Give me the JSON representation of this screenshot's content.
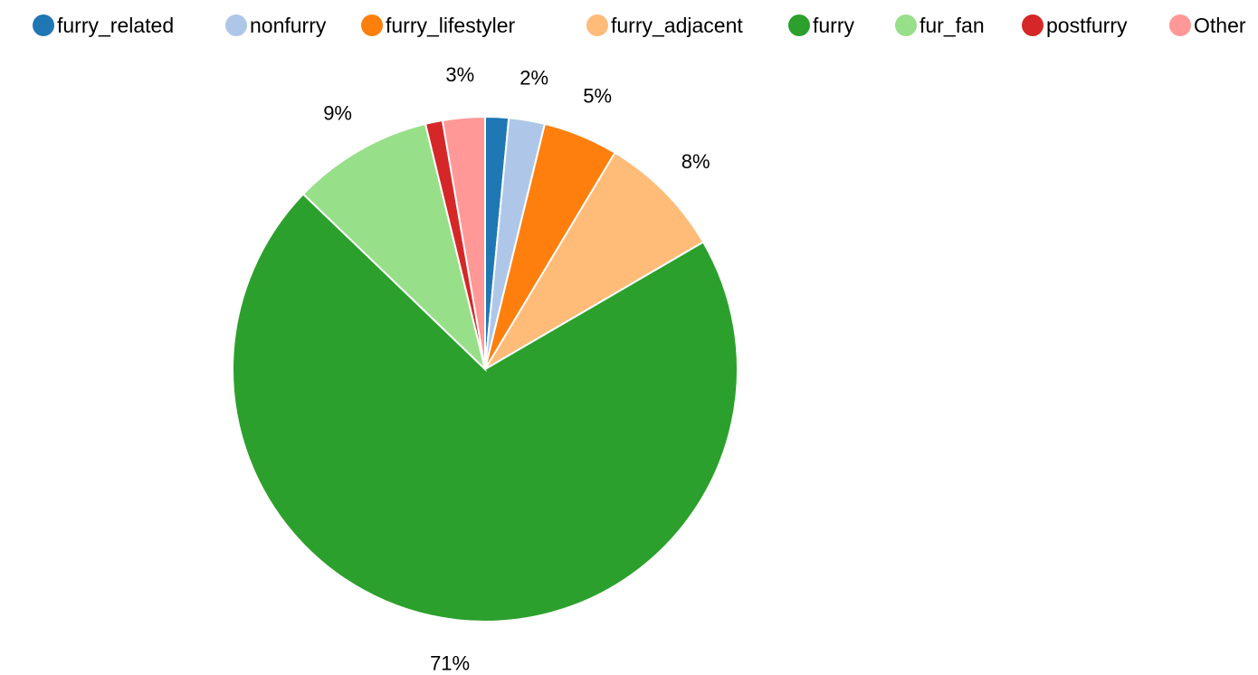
{
  "chart_data": {
    "type": "pie",
    "title": "",
    "legend_position": "top",
    "slices": [
      {
        "label": "furry_related",
        "value": 1.5,
        "display": "",
        "color": "#1f77b4"
      },
      {
        "label": "nonfurry",
        "value": 2.3,
        "display": "2%",
        "color": "#aec7e8"
      },
      {
        "label": "furry_lifestyler",
        "value": 4.8,
        "display": "5%",
        "color": "#ff7f0e"
      },
      {
        "label": "furry_adjacent",
        "value": 8.0,
        "display": "8%",
        "color": "#ffbb78"
      },
      {
        "label": "furry",
        "value": 70.6,
        "display": "71%",
        "color": "#2ca02c"
      },
      {
        "label": "fur_fan",
        "value": 9.0,
        "display": "9%",
        "color": "#98df8a"
      },
      {
        "label": "postfurry",
        "value": 1.1,
        "display": "",
        "color": "#d62728"
      },
      {
        "label": "Other",
        "value": 2.7,
        "display": "3%",
        "color": "#ff9896"
      }
    ]
  }
}
